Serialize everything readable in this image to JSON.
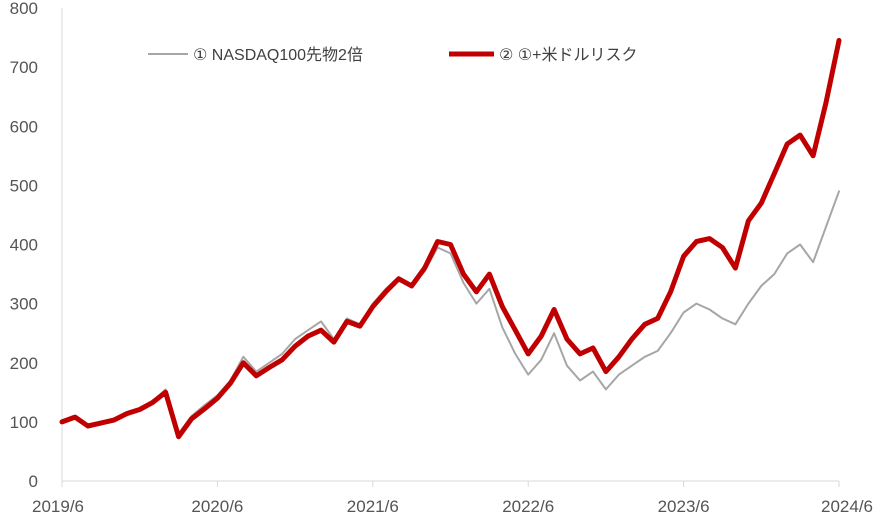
{
  "chart_data": {
    "type": "line",
    "title": "",
    "xlabel": "",
    "ylabel": "",
    "ylim": [
      0,
      800
    ],
    "yticks": [
      "0",
      "100",
      "200",
      "300",
      "400",
      "500",
      "600",
      "700",
      "800"
    ],
    "xticks": [
      "2019/6",
      "2020/6",
      "2021/6",
      "2022/6",
      "2023/6",
      "2024/6"
    ],
    "xlim": [
      "2019/6",
      "2024/6"
    ],
    "grid": false,
    "legend_position": "top",
    "series": [
      {
        "name": "① NASDAQ100先物2倍",
        "color": "#a6a6a6",
        "points": [
          [
            "2019/6",
            100
          ],
          [
            "2019/7",
            108
          ],
          [
            "2019/8",
            95
          ],
          [
            "2019/9",
            100
          ],
          [
            "2019/10",
            104
          ],
          [
            "2019/11",
            115
          ],
          [
            "2019/12",
            122
          ],
          [
            "2020/1",
            135
          ],
          [
            "2020/2",
            155
          ],
          [
            "2020/3",
            80
          ],
          [
            "2020/4",
            110
          ],
          [
            "2020/5",
            128
          ],
          [
            "2020/6",
            145
          ],
          [
            "2020/7",
            170
          ],
          [
            "2020/8",
            210
          ],
          [
            "2020/9",
            185
          ],
          [
            "2020/10",
            200
          ],
          [
            "2020/11",
            215
          ],
          [
            "2020/12",
            240
          ],
          [
            "2021/1",
            255
          ],
          [
            "2021/2",
            270
          ],
          [
            "2021/3",
            240
          ],
          [
            "2021/4",
            275
          ],
          [
            "2021/5",
            265
          ],
          [
            "2021/6",
            300
          ],
          [
            "2021/7",
            325
          ],
          [
            "2021/8",
            345
          ],
          [
            "2021/9",
            330
          ],
          [
            "2021/10",
            355
          ],
          [
            "2021/11",
            395
          ],
          [
            "2021/12",
            385
          ],
          [
            "2022/1",
            335
          ],
          [
            "2022/2",
            300
          ],
          [
            "2022/3",
            325
          ],
          [
            "2022/4",
            260
          ],
          [
            "2022/5",
            215
          ],
          [
            "2022/6",
            180
          ],
          [
            "2022/7",
            205
          ],
          [
            "2022/8",
            250
          ],
          [
            "2022/9",
            195
          ],
          [
            "2022/10",
            170
          ],
          [
            "2022/11",
            185
          ],
          [
            "2022/12",
            155
          ],
          [
            "2023/1",
            180
          ],
          [
            "2023/2",
            195
          ],
          [
            "2023/3",
            210
          ],
          [
            "2023/4",
            220
          ],
          [
            "2023/5",
            250
          ],
          [
            "2023/6",
            285
          ],
          [
            "2023/7",
            300
          ],
          [
            "2023/8",
            290
          ],
          [
            "2023/9",
            275
          ],
          [
            "2023/10",
            265
          ],
          [
            "2023/11",
            300
          ],
          [
            "2023/12",
            330
          ],
          [
            "2024/1",
            350
          ],
          [
            "2024/2",
            385
          ],
          [
            "2024/3",
            400
          ],
          [
            "2024/4",
            370
          ],
          [
            "2024/5",
            430
          ],
          [
            "2024/6",
            490
          ]
        ]
      },
      {
        "name": "② ①+米ドルリスク",
        "color": "#c00000",
        "points": [
          [
            "2019/6",
            100
          ],
          [
            "2019/7",
            108
          ],
          [
            "2019/8",
            93
          ],
          [
            "2019/9",
            98
          ],
          [
            "2019/10",
            103
          ],
          [
            "2019/11",
            114
          ],
          [
            "2019/12",
            121
          ],
          [
            "2020/1",
            133
          ],
          [
            "2020/2",
            150
          ],
          [
            "2020/3",
            75
          ],
          [
            "2020/4",
            105
          ],
          [
            "2020/5",
            122
          ],
          [
            "2020/6",
            140
          ],
          [
            "2020/7",
            165
          ],
          [
            "2020/8",
            200
          ],
          [
            "2020/9",
            178
          ],
          [
            "2020/10",
            192
          ],
          [
            "2020/11",
            205
          ],
          [
            "2020/12",
            228
          ],
          [
            "2021/1",
            245
          ],
          [
            "2021/2",
            255
          ],
          [
            "2021/3",
            235
          ],
          [
            "2021/4",
            270
          ],
          [
            "2021/5",
            262
          ],
          [
            "2021/6",
            295
          ],
          [
            "2021/7",
            320
          ],
          [
            "2021/8",
            342
          ],
          [
            "2021/9",
            330
          ],
          [
            "2021/10",
            360
          ],
          [
            "2021/11",
            405
          ],
          [
            "2021/12",
            400
          ],
          [
            "2022/1",
            350
          ],
          [
            "2022/2",
            320
          ],
          [
            "2022/3",
            350
          ],
          [
            "2022/4",
            295
          ],
          [
            "2022/5",
            255
          ],
          [
            "2022/6",
            215
          ],
          [
            "2022/7",
            245
          ],
          [
            "2022/8",
            290
          ],
          [
            "2022/9",
            240
          ],
          [
            "2022/10",
            215
          ],
          [
            "2022/11",
            225
          ],
          [
            "2022/12",
            185
          ],
          [
            "2023/1",
            210
          ],
          [
            "2023/2",
            240
          ],
          [
            "2023/3",
            265
          ],
          [
            "2023/4",
            275
          ],
          [
            "2023/5",
            320
          ],
          [
            "2023/6",
            380
          ],
          [
            "2023/7",
            405
          ],
          [
            "2023/8",
            410
          ],
          [
            "2023/9",
            395
          ],
          [
            "2023/10",
            360
          ],
          [
            "2023/11",
            440
          ],
          [
            "2023/12",
            470
          ],
          [
            "2024/1",
            520
          ],
          [
            "2024/2",
            570
          ],
          [
            "2024/3",
            585
          ],
          [
            "2024/4",
            550
          ],
          [
            "2024/5",
            640
          ],
          [
            "2024/6",
            745
          ]
        ]
      }
    ]
  }
}
